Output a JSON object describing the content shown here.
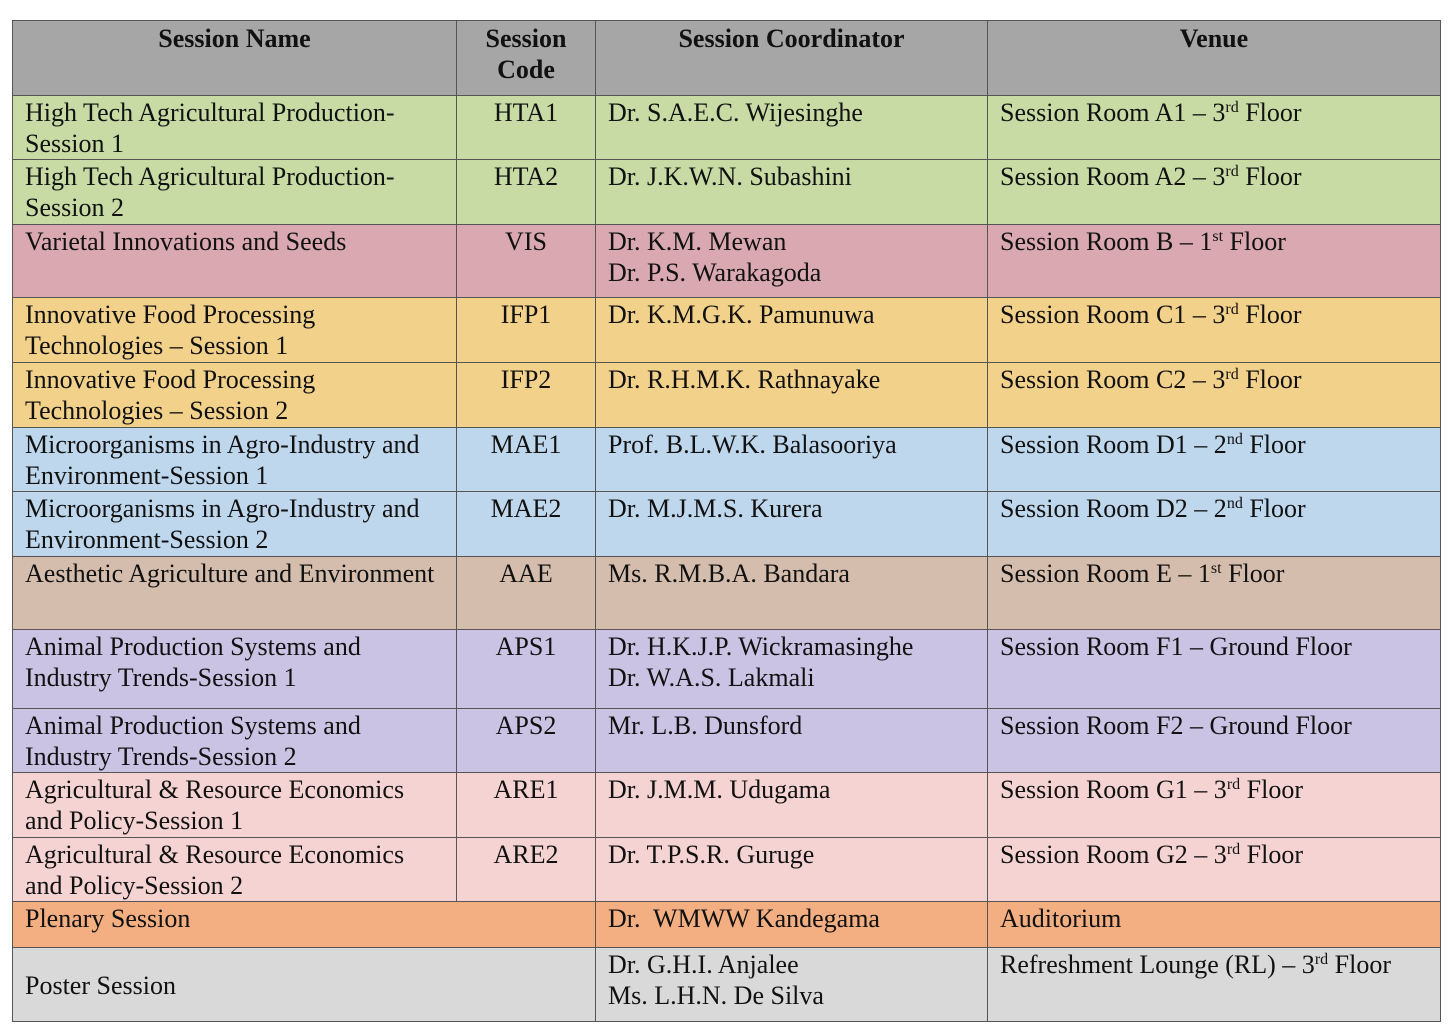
{
  "header": {
    "columns": [
      "Session Name",
      "Session Code",
      "Session Coordinator",
      "Venue"
    ]
  },
  "table": {
    "rows": [
      {
        "name": "High Tech Agricultural Production-Session 1",
        "code": "HTA1",
        "coordinators": [
          "Dr. S.A.E.C. Wijesinghe"
        ],
        "venue": {
          "before": "Session Room A1 – 3",
          "sup": "rd",
          "after": " Floor"
        }
      },
      {
        "name": "High Tech Agricultural Production-Session 2",
        "code": "HTA2",
        "coordinators": [
          "Dr. J.K.W.N. Subashini"
        ],
        "venue": {
          "before": "Session Room A2 – 3",
          "sup": "rd",
          "after": " Floor"
        }
      },
      {
        "name": "Varietal Innovations and Seeds",
        "code": "VIS",
        "coordinators": [
          "Dr. K.M. Mewan",
          "Dr. P.S. Warakagoda"
        ],
        "venue": {
          "before": "Session Room B – 1",
          "sup": "st",
          "after": " Floor"
        }
      },
      {
        "name": "Innovative Food Processing Technologies – Session 1",
        "code": "IFP1",
        "coordinators": [
          "Dr. K.M.G.K. Pamunuwa"
        ],
        "venue": {
          "before": "Session Room C1 – 3",
          "sup": "rd",
          "after": " Floor"
        }
      },
      {
        "name": "Innovative Food Processing Technologies – Session 2",
        "code": "IFP2",
        "coordinators": [
          "Dr. R.H.M.K. Rathnayake"
        ],
        "venue": {
          "before": "Session Room C2 – 3",
          "sup": "rd",
          "after": " Floor"
        }
      },
      {
        "name": "Microorganisms in Agro-Industry and Environment-Session 1",
        "code": "MAE1",
        "coordinators": [
          "Prof. B.L.W.K. Balasooriya"
        ],
        "venue": {
          "before": "Session Room D1 – 2",
          "sup": "nd",
          "after": " Floor"
        }
      },
      {
        "name": "Microorganisms in Agro-Industry and Environment-Session 2",
        "code": "MAE2",
        "coordinators": [
          "Dr. M.J.M.S. Kurera"
        ],
        "venue": {
          "before": "Session Room D2 – 2",
          "sup": "nd",
          "after": " Floor"
        }
      },
      {
        "name": "Aesthetic Agriculture and Environment",
        "code": "AAE",
        "coordinators": [
          "Ms. R.M.B.A. Bandara"
        ],
        "venue": {
          "before": "Session Room E – 1",
          "sup": "st",
          "after": " Floor"
        }
      },
      {
        "name": "Animal Production Systems and Industry Trends-Session 1",
        "code": "APS1",
        "coordinators": [
          "Dr. H.K.J.P. Wickramasinghe",
          "Dr. W.A.S. Lakmali"
        ],
        "venue": "Session Room F1 – Ground Floor"
      },
      {
        "name": "Animal Production Systems and Industry Trends-Session 2",
        "code": "APS2",
        "coordinators": [
          "Mr. L.B. Dunsford"
        ],
        "venue": "Session Room F2 – Ground Floor"
      },
      {
        "name": "Agricultural & Resource Economics and Policy-Session 1",
        "code": "ARE1",
        "coordinators": [
          "Dr. J.M.M. Udugama"
        ],
        "venue": {
          "before": "Session Room G1 – 3",
          "sup": "rd",
          "after": " Floor"
        }
      },
      {
        "name": "Agricultural & Resource Economics and Policy-Session 2",
        "code": "ARE2",
        "coordinators": [
          "Dr. T.P.S.R. Guruge"
        ],
        "venue": {
          "before": "Session Room G2 – 3",
          "sup": "rd",
          "after": " Floor"
        }
      },
      {
        "name": "Plenary Session",
        "coordinators": [
          "Dr.  WMWW Kandegama"
        ],
        "venue": "Auditorium"
      },
      {
        "name": "Poster Session",
        "coordinators": [
          "Dr. G.H.I. Anjalee",
          "Ms. L.H.N. De Silva"
        ],
        "venue": {
          "before": "Refreshment Lounge (RL) – 3",
          "sup": "rd",
          "after": " Floor"
        }
      }
    ]
  }
}
